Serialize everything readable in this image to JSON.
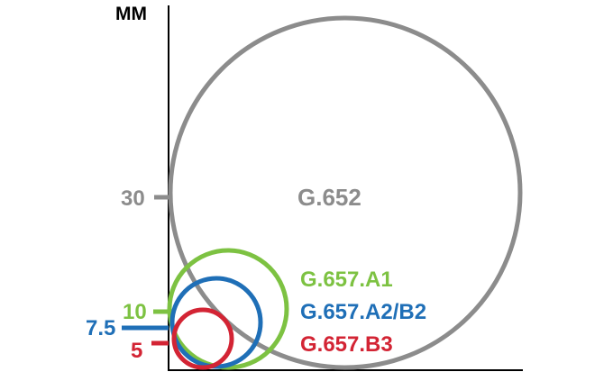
{
  "unit_label": "MM",
  "colors": {
    "axis": "#000000",
    "g652": "#8c8c8c",
    "a1": "#7dc242",
    "a2b2": "#1f6fb7",
    "b3": "#d32434"
  },
  "circles": [
    {
      "id": "g652",
      "name": "G.652",
      "radius_label": "30",
      "color_key": "g652"
    },
    {
      "id": "a1",
      "name": "G.657.A1",
      "radius_label": "10",
      "color_key": "a1"
    },
    {
      "id": "a2b2",
      "name": "G.657.A2/B2",
      "radius_label": "7.5",
      "color_key": "a2b2"
    },
    {
      "id": "b3",
      "name": "G.657.B3",
      "radius_label": "5",
      "color_key": "b3"
    }
  ]
}
